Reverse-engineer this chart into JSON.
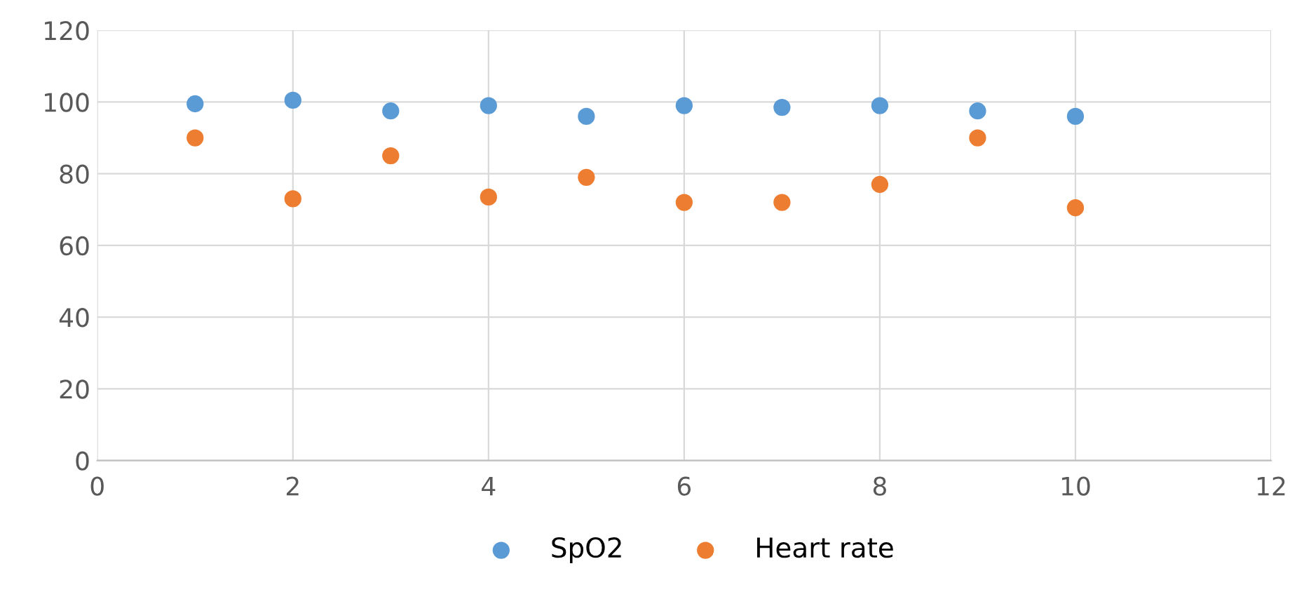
{
  "chart_data": {
    "type": "scatter",
    "x": [
      1,
      2,
      3,
      4,
      5,
      6,
      7,
      8,
      9,
      10
    ],
    "series": [
      {
        "name": "SpO2",
        "color": "#5b9bd5",
        "values": [
          99.5,
          100.5,
          97.5,
          99,
          96,
          99,
          98.5,
          99,
          97.5,
          96
        ]
      },
      {
        "name": "Heart rate",
        "color": "#ed7d31",
        "values": [
          90,
          73,
          85,
          73.5,
          79,
          72,
          72,
          77,
          90,
          70.5
        ]
      }
    ],
    "xlim": [
      0,
      12
    ],
    "xticks": [
      0,
      2,
      4,
      6,
      8,
      10,
      12
    ],
    "ylim": [
      0,
      120
    ],
    "yticks": [
      0,
      20,
      40,
      60,
      80,
      100,
      120
    ],
    "grid": true,
    "legend": "bottom",
    "marker": "circle"
  }
}
